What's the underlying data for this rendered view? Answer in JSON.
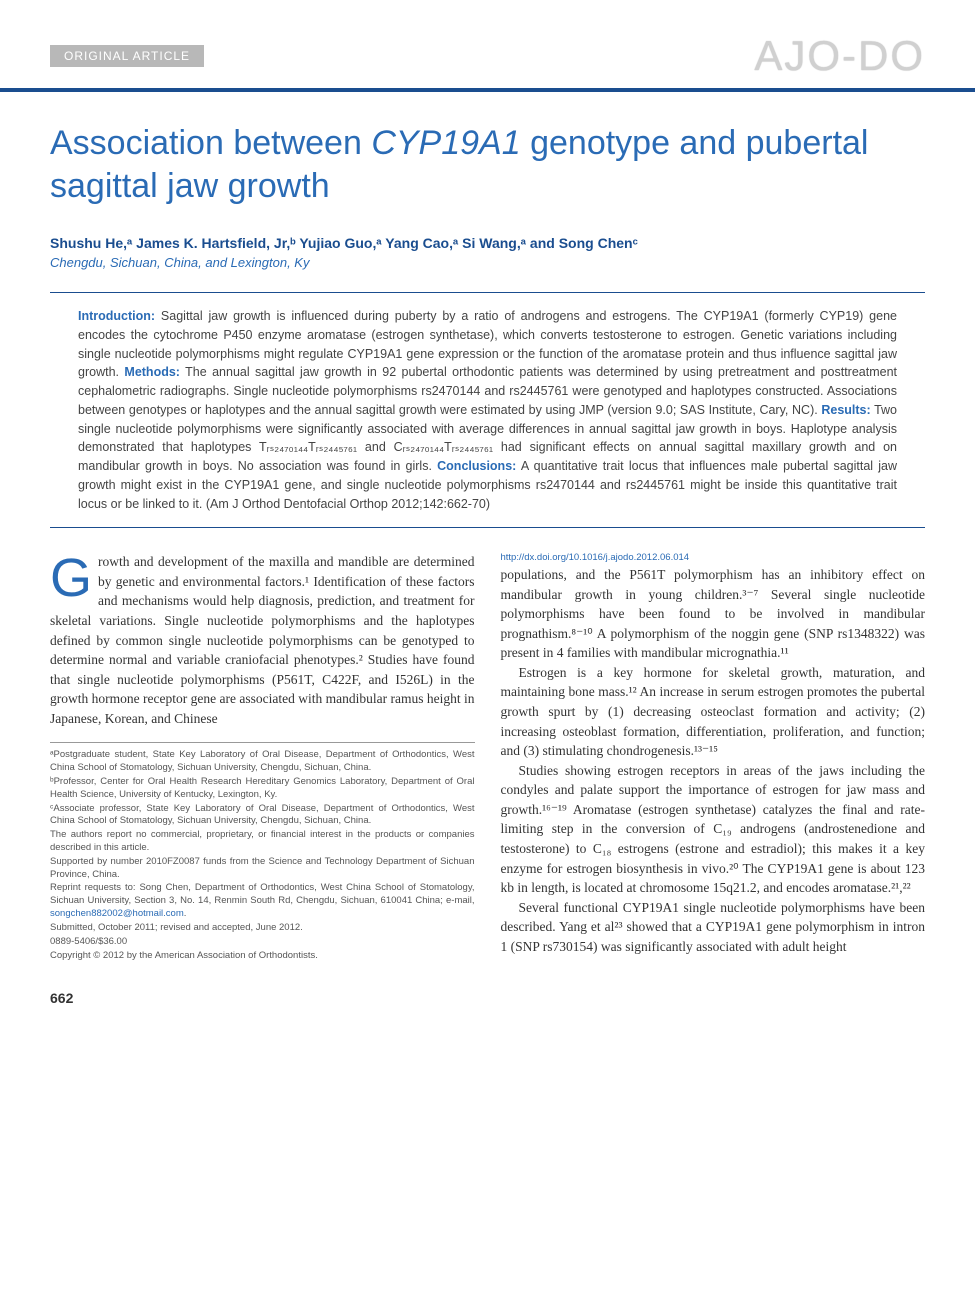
{
  "header": {
    "article_type": "ORIGINAL ARTICLE",
    "journal_logo": "AJO-DO"
  },
  "title_pre": "Association between ",
  "title_ital": "CYP19A1",
  "title_post": " genotype and pubertal sagittal jaw growth",
  "authors_html": "Shushu He,ᵃ James K. Hartsfield, Jr,ᵇ Yujiao Guo,ᵃ Yang Cao,ᵃ Si Wang,ᵃ and Song Chenᶜ",
  "affil_line": "Chengdu, Sichuan, China, and Lexington, Ky",
  "abstract": {
    "intro_label": "Introduction:",
    "intro_text": " Sagittal jaw growth is influenced during puberty by a ratio of androgens and estrogens. The CYP19A1 (formerly CYP19) gene encodes the cytochrome P450 enzyme aromatase (estrogen synthetase), which converts testosterone to estrogen. Genetic variations including single nucleotide polymorphisms might regulate CYP19A1 gene expression or the function of the aromatase protein and thus influence sagittal jaw growth. ",
    "methods_label": "Methods:",
    "methods_text": " The annual sagittal jaw growth in 92 pubertal orthodontic patients was determined by using pretreatment and posttreatment cephalometric radiographs. Single nucleotide polymorphisms rs2470144 and rs2445761 were genotyped and haplotypes constructed. Associations between genotypes or haplotypes and the annual sagittal growth were estimated by using JMP (version 9.0; SAS Institute, Cary, NC). ",
    "results_label": "Results:",
    "results_text": " Two single nucleotide polymorphisms were significantly associated with average differences in annual sagittal jaw growth in boys. Haplotype analysis demonstrated that haplotypes Tᵣₛ₂₄₇₀₁₄₄Tᵣₛ₂₄₄₅₇₆₁ and Cᵣₛ₂₄₇₀₁₄₄Tᵣₛ₂₄₄₅₇₆₁ had significant effects on annual sagittal maxillary growth and on mandibular growth in boys. No association was found in girls. ",
    "conclusions_label": "Conclusions:",
    "conclusions_text": " A quantitative trait locus that influences male pubertal sagittal jaw growth might exist in the CYP19A1 gene, and single nucleotide polymorphisms rs2470144 and rs2445761 might be inside this quantitative trait locus or be linked to it. (Am J Orthod Dentofacial Orthop 2012;142:662-70)"
  },
  "body": {
    "p1_drop": "G",
    "p1": "rowth and development of the maxilla and mandible are determined by genetic and environmental factors.¹ Identification of these factors and mechanisms would help diagnosis, prediction, and treatment for skeletal variations. Single nucleotide polymorphisms and the haplotypes defined by common single nucleotide polymorphisms can be genotyped to determine normal and variable craniofacial phenotypes.² Studies have found that single nucleotide polymorphisms (P561T, C422F, and I526L) in the growth hormone receptor gene are associated with mandibular ramus height in Japanese, Korean, and Chinese",
    "p2": "populations, and the P561T polymorphism has an inhibitory effect on mandibular growth in young children.³⁻⁷ Several single nucleotide polymorphisms have been found to be involved in mandibular prognathism.⁸⁻¹⁰ A polymorphism of the noggin gene (SNP rs1348322) was present in 4 families with mandibular micrognathia.¹¹",
    "p3": "Estrogen is a key hormone for skeletal growth, maturation, and maintaining bone mass.¹² An increase in serum estrogen promotes the pubertal growth spurt by (1) decreasing osteoclast formation and activity; (2) increasing osteoblast formation, differentiation, proliferation, and function; and (3) stimulating chondrogenesis.¹³⁻¹⁵",
    "p4": "Studies showing estrogen receptors in areas of the jaws including the condyles and palate support the importance of estrogen for jaw mass and growth.¹⁶⁻¹⁹ Aromatase (estrogen synthetase) catalyzes the final and rate-limiting step in the conversion of C₁₉ androgens (androstenedione and testosterone) to C₁₈ estrogens (estrone and estradiol); this makes it a key enzyme for estrogen biosynthesis in vivo.²⁰ The CYP19A1 gene is about 123 kb in length, is located at chromosome 15q21.2, and encodes aromatase.²¹,²²",
    "p5": "Several functional CYP19A1 single nucleotide polymorphisms have been described. Yang et al²³ showed that a CYP19A1 gene polymorphism in intron 1 (SNP rs730154) was significantly associated with adult height"
  },
  "footnotes": {
    "fn_a": "ᵃPostgraduate student, State Key Laboratory of Oral Disease, Department of Orthodontics, West China School of Stomatology, Sichuan University, Chengdu, Sichuan, China.",
    "fn_b": "ᵇProfessor, Center for Oral Health Research Hereditary Genomics Laboratory, Department of Oral Health Science, University of Kentucky, Lexington, Ky.",
    "fn_c": "ᶜAssociate professor, State Key Laboratory of Oral Disease, Department of Orthodontics, West China School of Stomatology, Sichuan University, Chengdu, Sichuan, China.",
    "fn_disc": "The authors report no commercial, proprietary, or financial interest in the products or companies described in this article.",
    "fn_support": "Supported by number 2010FZ0087 funds from the Science and Technology Department of Sichuan Province, China.",
    "fn_reprint": "Reprint requests to: Song Chen, Department of Orthodontics, West China School of Stomatology, Sichuan University, Section 3, No. 14, Renmin South Rd, Chengdu, Sichuan, 610041 China; e-mail, ",
    "fn_email": "songchen882002@hotmail.com",
    "fn_dates": "Submitted, October 2011; revised and accepted, June 2012.",
    "fn_issn": "0889-5406/$36.00",
    "fn_copy": "Copyright © 2012 by the American Association of Orthodontists.",
    "fn_doi": "http://dx.doi.org/10.1016/j.ajodo.2012.06.014"
  },
  "page_number": "662",
  "colors": {
    "accent_blue": "#2a6bb5",
    "dark_blue": "#1a4d8f",
    "grey_band": "#b8b8b8",
    "logo_grey": "#d0d0d0"
  },
  "typography": {
    "title_fontsize": 34,
    "abstract_fontsize": 12.5,
    "body_fontsize": 13.5,
    "footnote_fontsize": 9.5
  }
}
